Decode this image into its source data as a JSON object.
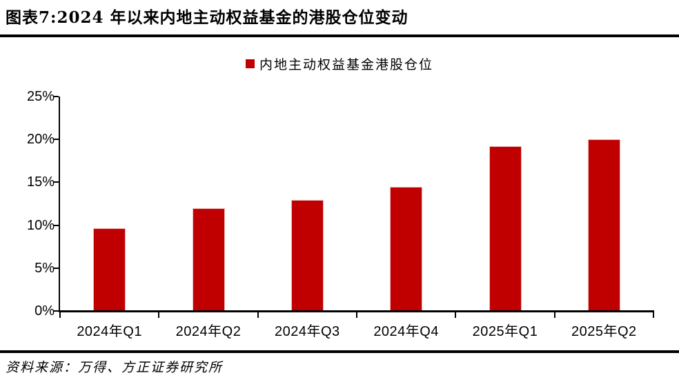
{
  "header": {
    "title": "图表7:2024 年以来内地主动权益基金的港股仓位变动"
  },
  "legend": {
    "label": "内地主动权益基金港股仓位",
    "marker_color": "#c00000"
  },
  "chart_data": {
    "type": "bar",
    "title": "2024 年以来内地主动权益基金的港股仓位变动",
    "categories": [
      "2024年Q1",
      "2024年Q2",
      "2024年Q3",
      "2024年Q4",
      "2025年Q1",
      "2025年Q2"
    ],
    "series": [
      {
        "name": "内地主动权益基金港股仓位",
        "values": [
          9.6,
          11.9,
          12.9,
          14.4,
          19.1,
          19.9
        ]
      }
    ],
    "unit": "%",
    "xlabel": "",
    "ylabel": "",
    "ylim": [
      0,
      25
    ],
    "ytick_step": 5,
    "ytick_labels": [
      "0%",
      "5%",
      "10%",
      "15%",
      "20%",
      "25%"
    ],
    "bar_color": "#c00000",
    "grid": false,
    "legend_position": "top-center"
  },
  "footer": {
    "source": "资料来源：万得、方正证券研究所"
  }
}
